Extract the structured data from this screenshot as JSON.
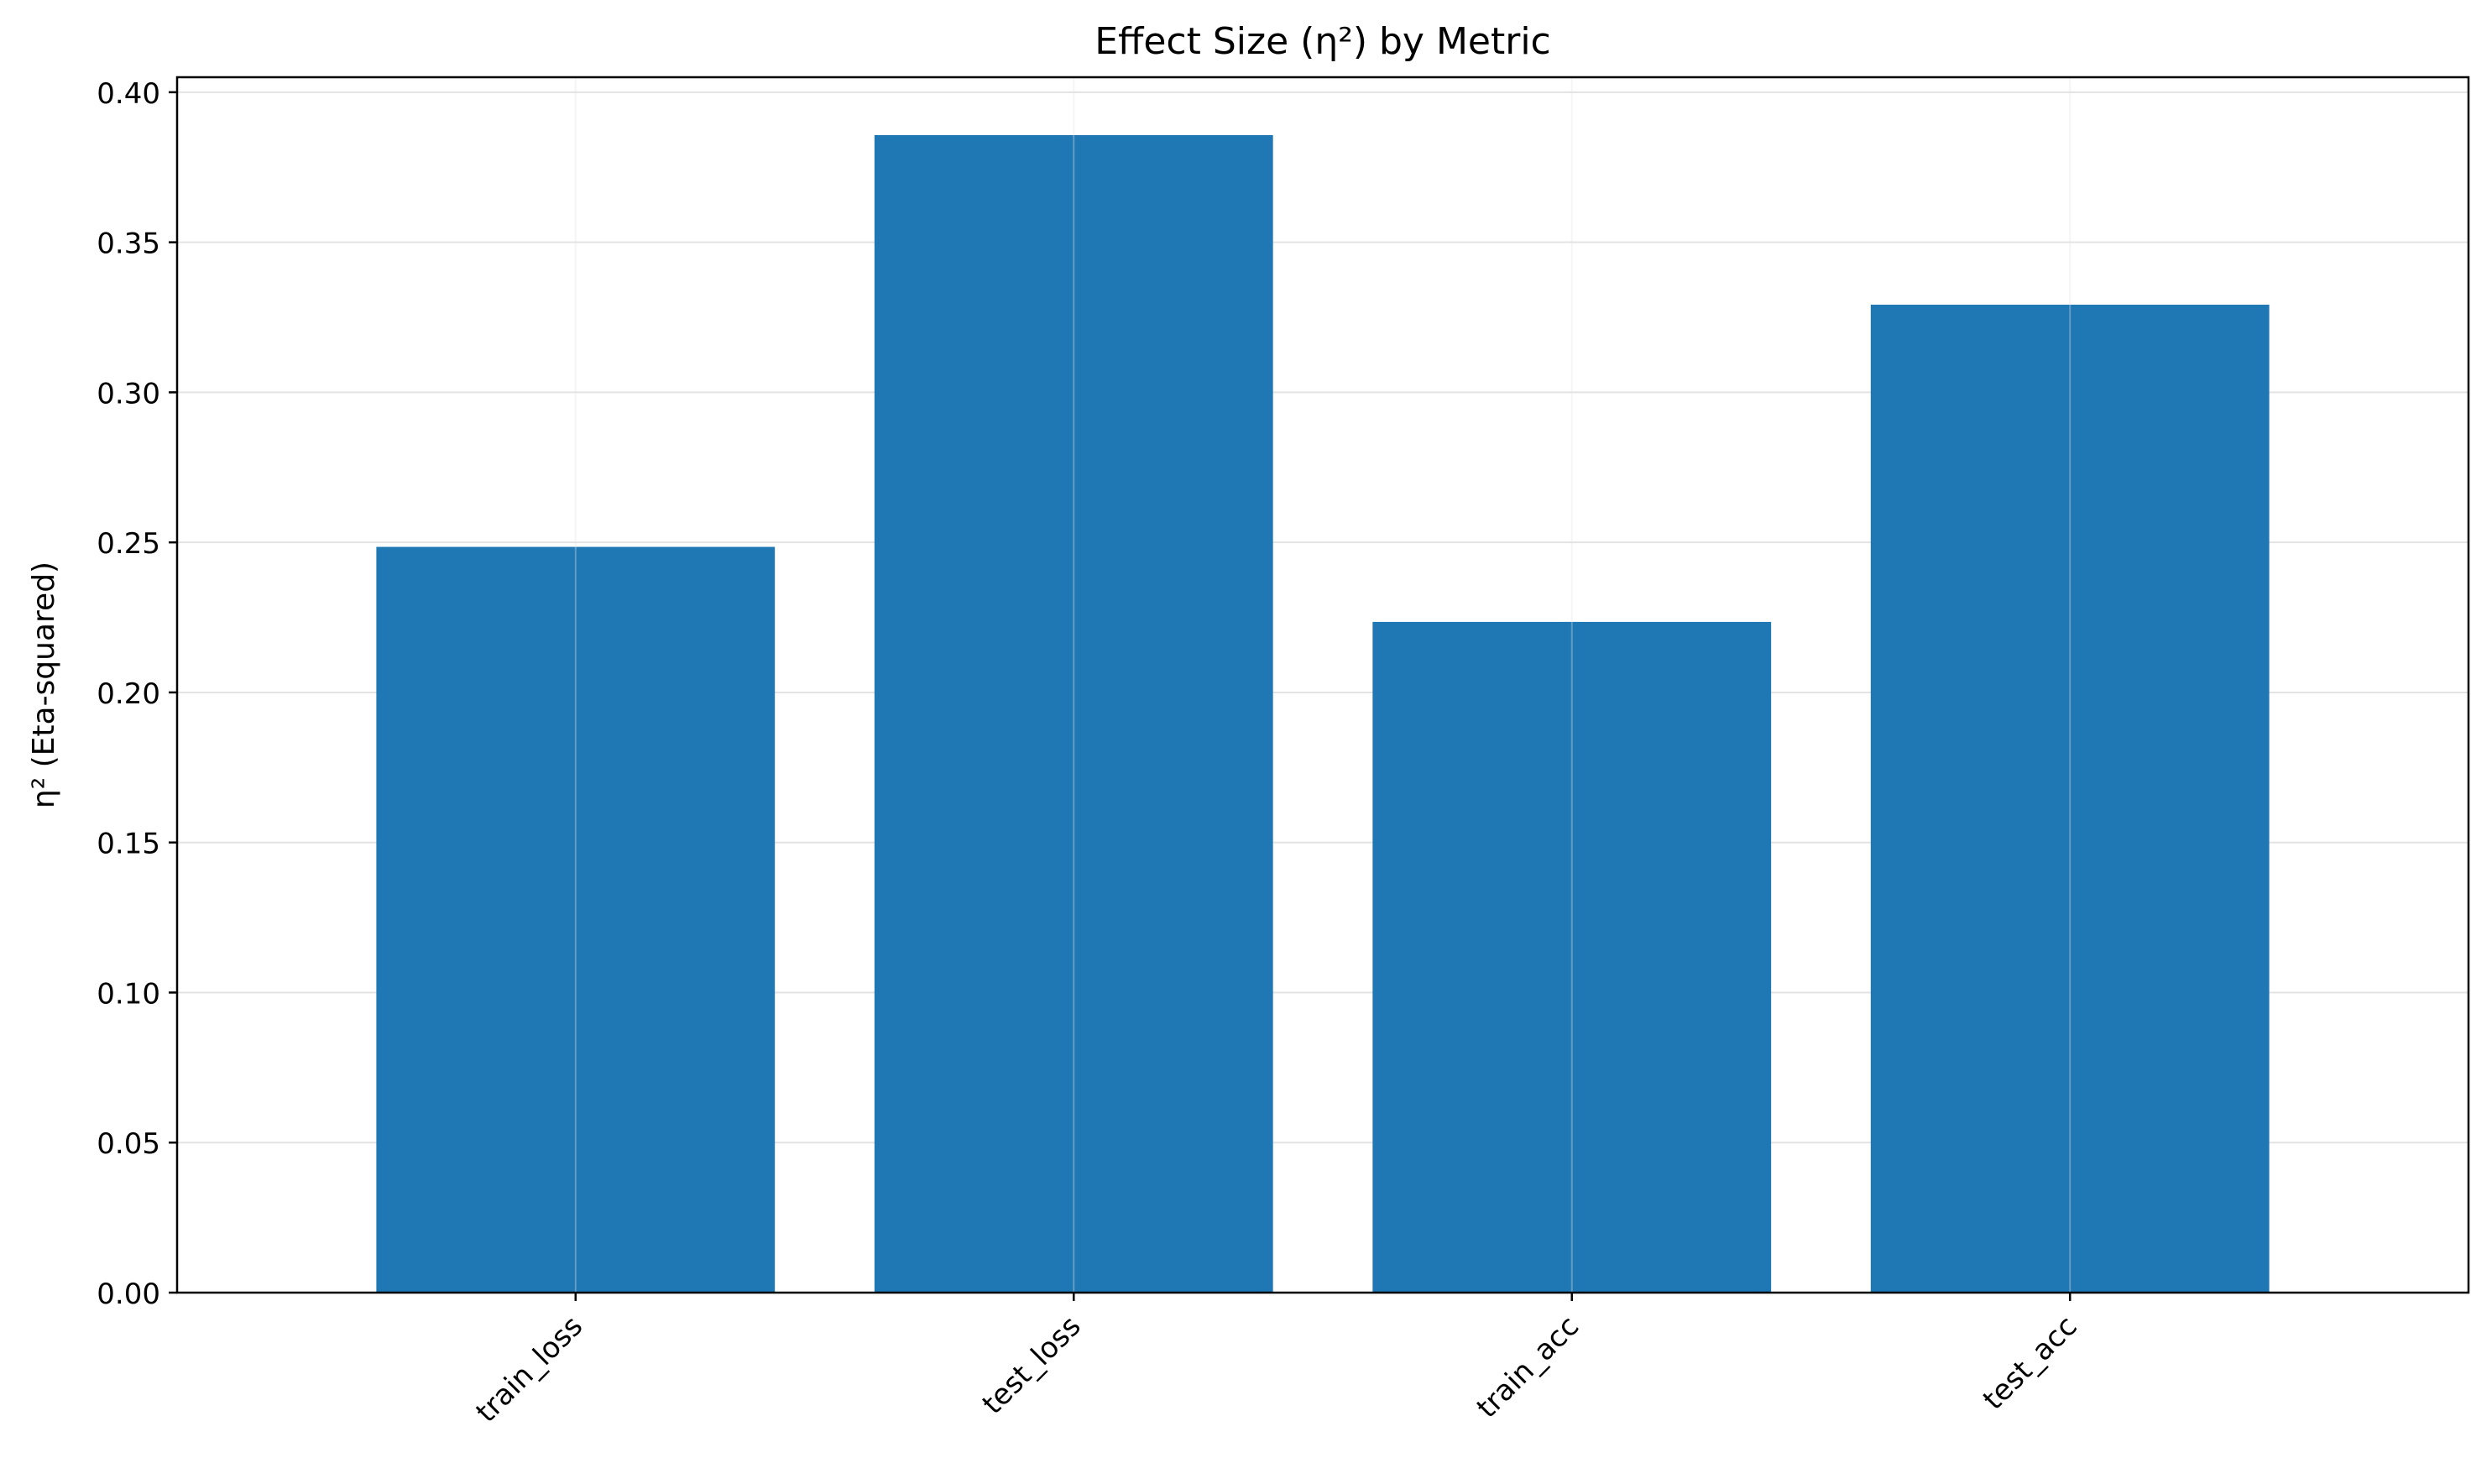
{
  "chart_data": {
    "type": "bar",
    "title": "Effect Size (η²) by Metric",
    "xlabel": "",
    "ylabel": "η² (Eta-squared)",
    "categories": [
      "train_loss",
      "test_loss",
      "train_acc",
      "test_acc"
    ],
    "values": [
      0.2485,
      0.3857,
      0.2235,
      0.3292
    ],
    "ylim": [
      0,
      0.405
    ],
    "yticks": [
      "0.00",
      "0.05",
      "0.10",
      "0.15",
      "0.20",
      "0.25",
      "0.30",
      "0.35",
      "0.40"
    ],
    "grid": true,
    "legend": "none",
    "colors": {
      "bar": "#1f77b4",
      "grid": "#e3e3e3",
      "axis": "#000000"
    }
  }
}
